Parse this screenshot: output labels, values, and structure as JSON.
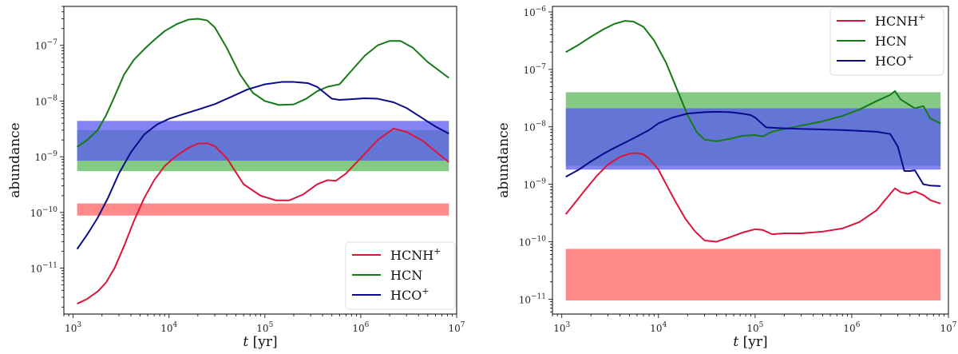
{
  "chart_data": [
    {
      "type": "line",
      "panel": "left",
      "xscale": "log",
      "yscale": "log",
      "xlim": [
        800,
        10000000
      ],
      "ylim": [
        1.5e-12,
        5e-07
      ],
      "xlabel_italic": "t",
      "xlabel_unit": "[yr]",
      "ylabel": "abundance",
      "xticks": [
        {
          "base": "10",
          "exp": "3",
          "v": 1000
        },
        {
          "base": "10",
          "exp": "4",
          "v": 10000
        },
        {
          "base": "10",
          "exp": "5",
          "v": 100000
        },
        {
          "base": "10",
          "exp": "6",
          "v": 1000000
        },
        {
          "base": "10",
          "exp": "7",
          "v": 10000000
        }
      ],
      "yticks": [
        {
          "base": "10",
          "exp": "−11",
          "v": 1e-11
        },
        {
          "base": "10",
          "exp": "−10",
          "v": 1e-10
        },
        {
          "base": "10",
          "exp": "−9",
          "v": 1e-09
        },
        {
          "base": "10",
          "exp": "−8",
          "v": 1e-08
        },
        {
          "base": "10",
          "exp": "−7",
          "v": 1e-07
        }
      ],
      "legend_position": "lower-right",
      "bands": [
        {
          "name": "HCN obs",
          "y0": 5.5e-10,
          "y1": 3e-09,
          "color": "#6fbf6f",
          "opacity": 0.85
        },
        {
          "name": "HCO+ obs",
          "y0": 8.5e-10,
          "y1": 4.4e-09,
          "color": "#5a5af0",
          "opacity": 0.75
        },
        {
          "name": "HCNH+ obs",
          "y0": 8.8e-11,
          "y1": 1.45e-10,
          "color": "#ff6b6b",
          "opacity": 0.8
        }
      ],
      "series": [
        {
          "name": "HCNH",
          "sup": "+",
          "color": "#dc143c",
          "x": [
            1100,
            1400,
            1800,
            2200,
            2700,
            3400,
            4300,
            5500,
            7000,
            9000,
            12000,
            16000,
            20000,
            25000,
            30000,
            40000,
            60000,
            90000,
            130000,
            180000,
            250000,
            350000,
            450000,
            550000,
            700000,
            1000000,
            1500000,
            2200000,
            3000000,
            4500000,
            6000000,
            8300000
          ],
          "y": [
            2.3e-12,
            2.8e-12,
            3.8e-12,
            5.5e-12,
            1e-11,
            2.5e-11,
            7e-11,
            1.8e-10,
            3.8e-10,
            6.8e-10,
            1.05e-09,
            1.45e-09,
            1.72e-09,
            1.75e-09,
            1.55e-09,
            9.5e-10,
            3.2e-10,
            2e-10,
            1.65e-10,
            1.65e-10,
            2.1e-10,
            3.2e-10,
            3.8e-10,
            3.7e-10,
            5e-10,
            9.5e-10,
            2e-09,
            3.2e-09,
            2.8e-09,
            1.9e-09,
            1.25e-09,
            8e-10
          ]
        },
        {
          "name": "HCN",
          "sup": "",
          "color": "#157a15",
          "x": [
            1100,
            1400,
            1800,
            2200,
            2700,
            3400,
            4300,
            5500,
            7000,
            9000,
            12000,
            16000,
            20000,
            25000,
            30000,
            40000,
            55000,
            75000,
            100000,
            140000,
            200000,
            270000,
            350000,
            450000,
            600000,
            800000,
            1100000,
            1500000,
            2000000,
            2600000,
            3500000,
            5000000,
            8300000
          ],
          "y": [
            1.5e-09,
            2e-09,
            3e-09,
            5.5e-09,
            1.2e-08,
            3e-08,
            5.5e-08,
            8.5e-08,
            1.25e-07,
            1.8e-07,
            2.4e-07,
            2.9e-07,
            3e-07,
            2.8e-07,
            2.1e-07,
            9e-08,
            3e-08,
            1.4e-08,
            1e-08,
            8.5e-09,
            8.7e-09,
            1.1e-08,
            1.5e-08,
            1.8e-08,
            2e-08,
            3.5e-08,
            6.5e-08,
            1e-07,
            1.2e-07,
            1.2e-07,
            9e-08,
            5e-08,
            2.6e-08
          ]
        },
        {
          "name": "HCO",
          "sup": "+",
          "color": "#0a0a8c",
          "x": [
            1100,
            1400,
            1800,
            2300,
            3000,
            4000,
            5500,
            7500,
            10000,
            14000,
            20000,
            30000,
            45000,
            65000,
            100000,
            150000,
            200000,
            280000,
            350000,
            420000,
            500000,
            600000,
            800000,
            1100000,
            1500000,
            2200000,
            3000000,
            4500000,
            6000000,
            8300000
          ],
          "y": [
            2.2e-11,
            4e-11,
            8e-11,
            1.8e-10,
            5e-10,
            1.2e-09,
            2.5e-09,
            3.8e-09,
            4.8e-09,
            5.8e-09,
            7e-09,
            8.8e-09,
            1.2e-08,
            1.6e-08,
            2e-08,
            2.2e-08,
            2.2e-08,
            2.1e-08,
            1.8e-08,
            1.4e-08,
            1.1e-08,
            1.05e-08,
            1.08e-08,
            1.12e-08,
            1.1e-08,
            9.5e-09,
            7.5e-09,
            4.8e-09,
            3.5e-09,
            2.6e-09
          ]
        }
      ]
    },
    {
      "type": "line",
      "panel": "right",
      "xscale": "log",
      "yscale": "log",
      "xlim": [
        800,
        10000000
      ],
      "ylim": [
        5.5e-12,
        1.25e-06
      ],
      "xlabel_italic": "t",
      "xlabel_unit": "[yr]",
      "ylabel": "abundance",
      "xticks": [
        {
          "base": "10",
          "exp": "3",
          "v": 1000
        },
        {
          "base": "10",
          "exp": "4",
          "v": 10000
        },
        {
          "base": "10",
          "exp": "5",
          "v": 100000
        },
        {
          "base": "10",
          "exp": "6",
          "v": 1000000
        },
        {
          "base": "10",
          "exp": "7",
          "v": 10000000
        }
      ],
      "yticks": [
        {
          "base": "10",
          "exp": "−11",
          "v": 1e-11
        },
        {
          "base": "10",
          "exp": "−10",
          "v": 1e-10
        },
        {
          "base": "10",
          "exp": "−9",
          "v": 1e-09
        },
        {
          "base": "10",
          "exp": "−8",
          "v": 1e-08
        },
        {
          "base": "10",
          "exp": "−7",
          "v": 1e-07
        },
        {
          "base": "10",
          "exp": "−6",
          "v": 1e-06
        }
      ],
      "legend_position": "top-right",
      "bands": [
        {
          "name": "HCN obs",
          "y0": 2.1e-09,
          "y1": 4e-08,
          "color": "#6fbf6f",
          "opacity": 0.85
        },
        {
          "name": "HCO+ obs",
          "y0": 1.8e-09,
          "y1": 2.1e-08,
          "color": "#5a5af0",
          "opacity": 0.75
        },
        {
          "name": "HCNH+ obs",
          "y0": 9.5e-12,
          "y1": 7.5e-11,
          "color": "#ff6b6b",
          "opacity": 0.8
        }
      ],
      "series": [
        {
          "name": "HCNH",
          "sup": "+",
          "color": "#dc143c",
          "x": [
            1100,
            1400,
            1800,
            2300,
            3000,
            4000,
            5000,
            6000,
            7000,
            8000,
            10000,
            12000,
            15000,
            19000,
            24000,
            30000,
            40000,
            55000,
            75000,
            100000,
            120000,
            150000,
            200000,
            300000,
            500000,
            800000,
            1200000,
            1800000,
            2500000,
            2800000,
            3200000,
            3800000,
            4500000,
            5500000,
            6500000,
            8300000
          ],
          "y": [
            3e-10,
            5e-10,
            8.5e-10,
            1.4e-09,
            2.2e-09,
            3e-09,
            3.4e-09,
            3.5e-09,
            3.3e-09,
            2.8e-09,
            1.8e-09,
            1e-09,
            5e-10,
            2.5e-10,
            1.5e-10,
            1.05e-10,
            1e-10,
            1.2e-10,
            1.45e-10,
            1.65e-10,
            1.6e-10,
            1.35e-10,
            1.4e-10,
            1.4e-10,
            1.5e-10,
            1.7e-10,
            2.2e-10,
            3.5e-10,
            6.8e-10,
            8.5e-10,
            7.3e-10,
            6.8e-10,
            7.5e-10,
            6.5e-10,
            5.3e-10,
            4.6e-10
          ]
        },
        {
          "name": "HCN",
          "sup": "",
          "color": "#157a15",
          "x": [
            1100,
            1500,
            2000,
            2700,
            3500,
            4500,
            5500,
            7000,
            9000,
            12000,
            16000,
            20000,
            25000,
            30000,
            40000,
            55000,
            75000,
            100000,
            120000,
            150000,
            200000,
            300000,
            500000,
            800000,
            1200000,
            1800000,
            2500000,
            2800000,
            3200000,
            3800000,
            4500000,
            5500000,
            6500000,
            8300000
          ],
          "y": [
            2e-07,
            2.7e-07,
            3.7e-07,
            5e-07,
            6.2e-07,
            7e-07,
            6.8e-07,
            5.5e-07,
            3.2e-07,
            1.3e-07,
            4e-08,
            1.6e-08,
            8e-09,
            6e-09,
            5.6e-09,
            6.2e-09,
            7e-09,
            7.2e-09,
            6.8e-09,
            8.2e-09,
            9.2e-09,
            1.05e-08,
            1.25e-08,
            1.55e-08,
            2e-08,
            2.8e-08,
            3.6e-08,
            4.2e-08,
            3e-08,
            2.5e-08,
            2.1e-08,
            2.3e-08,
            1.4e-08,
            1.15e-08
          ]
        },
        {
          "name": "HCO",
          "sup": "+",
          "color": "#0a0a8c",
          "x": [
            1100,
            1500,
            2000,
            2700,
            3500,
            4500,
            6000,
            8000,
            10000,
            14000,
            20000,
            30000,
            40000,
            55000,
            70000,
            90000,
            100000,
            130000,
            180000,
            300000,
            500000,
            800000,
            1200000,
            1800000,
            2500000,
            3000000,
            3500000,
            4000000,
            4500000,
            5500000,
            6500000,
            8300000
          ],
          "y": [
            1.35e-09,
            1.8e-09,
            2.5e-09,
            3.4e-09,
            4.3e-09,
            5.3e-09,
            6.8e-09,
            8.8e-09,
            1.15e-08,
            1.45e-08,
            1.7e-08,
            1.8e-08,
            1.83e-08,
            1.8e-08,
            1.72e-08,
            1.6e-08,
            1.45e-08,
            9.8e-09,
            9.5e-09,
            9.2e-09,
            9e-09,
            8.8e-09,
            8.5e-09,
            8.2e-09,
            7.5e-09,
            4.5e-09,
            1.7e-09,
            1.7e-09,
            1.75e-09,
            1e-09,
            9.5e-10,
            9.3e-10
          ]
        }
      ]
    }
  ]
}
